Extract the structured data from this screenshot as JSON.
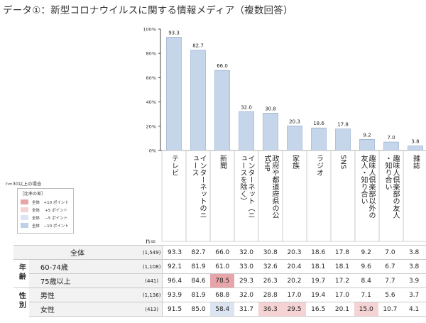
{
  "title": "データ①：新型コロナウイルスに関する情報メディア（複数回答）",
  "chart_data": {
    "type": "bar",
    "categories": [
      "テレビ",
      "インターネットのニュース",
      "新聞",
      "インターネット（ニュースを除く）",
      "政府や都道府県の公式HP",
      "家族",
      "ラジオ",
      "SNS",
      "趣味人倶楽部以外の友人・知り合い",
      "趣味人倶楽部の友人・知り合い",
      "雑誌"
    ],
    "values": [
      93.3,
      82.7,
      66.0,
      32.0,
      30.8,
      20.3,
      18.6,
      17.8,
      9.2,
      7.0,
      3.8
    ],
    "value_labels": [
      "93.3",
      "82.7",
      "66.0",
      "32.0",
      "30.8",
      "20.3",
      "18.6",
      "17.8",
      "9.2",
      "7.0",
      "3.8"
    ],
    "ylim": [
      0,
      100
    ],
    "ytick_labels": [
      "0%",
      "20%",
      "40%",
      "60%",
      "80%",
      "100%"
    ],
    "bar_color": "#c5d5ea",
    "bar_edge_color": "#8fa7c9"
  },
  "note": "n=30以上の場合",
  "legend": {
    "title": "［比率の差］",
    "items": [
      {
        "label": "全体　+10 ポイント",
        "color": "#e8a5a9"
      },
      {
        "label": "全体　 +5 ポイント",
        "color": "#f5d3d5"
      },
      {
        "label": "全体　 −5 ポイント",
        "color": "#dbe5f1"
      },
      {
        "label": "全体　−10 ポイント",
        "color": "#bdd0e6"
      }
    ]
  },
  "n_label": "n=",
  "table": {
    "rows": [
      {
        "group": "",
        "label": "全体",
        "n": "(1,549)",
        "values": [
          "93.3",
          "82.7",
          "66.0",
          "32.0",
          "30.8",
          "20.3",
          "18.6",
          "17.8",
          "9.2",
          "7.0",
          "3.8"
        ],
        "highlights": [
          "",
          "",
          "",
          "",
          "",
          "",
          "",
          "",
          "",
          "",
          ""
        ]
      },
      {
        "group": "年齢",
        "label": "60-74歳",
        "n": "(1,108)",
        "values": [
          "92.1",
          "81.9",
          "61.0",
          "33.0",
          "32.6",
          "20.4",
          "18.1",
          "18.1",
          "9.6",
          "6.7",
          "3.8"
        ],
        "highlights": [
          "",
          "",
          "",
          "",
          "",
          "",
          "",
          "",
          "",
          "",
          ""
        ]
      },
      {
        "group": "",
        "label": "75歳以上",
        "n": "(441)",
        "values": [
          "96.4",
          "84.6",
          "78.5",
          "29.3",
          "26.3",
          "20.2",
          "19.7",
          "17.2",
          "8.4",
          "7.7",
          "3.9"
        ],
        "highlights": [
          "",
          "",
          "hp10",
          "",
          "",
          "",
          "",
          "",
          "",
          "",
          ""
        ]
      },
      {
        "group": "性別",
        "label": "男性",
        "n": "(1,136)",
        "values": [
          "93.9",
          "81.9",
          "68.8",
          "32.0",
          "28.8",
          "17.0",
          "19.4",
          "17.0",
          "7.1",
          "5.6",
          "3.7"
        ],
        "highlights": [
          "",
          "",
          "",
          "",
          "",
          "",
          "",
          "",
          "",
          "",
          ""
        ]
      },
      {
        "group": "",
        "label": "女性",
        "n": "(413)",
        "values": [
          "91.5",
          "85.0",
          "58.4",
          "31.7",
          "36.3",
          "29.5",
          "16.5",
          "20.1",
          "15.0",
          "10.7",
          "4.1"
        ],
        "highlights": [
          "",
          "",
          "hm5",
          "",
          "hp5",
          "hp5",
          "",
          "",
          "hp5",
          "",
          ""
        ]
      }
    ]
  }
}
